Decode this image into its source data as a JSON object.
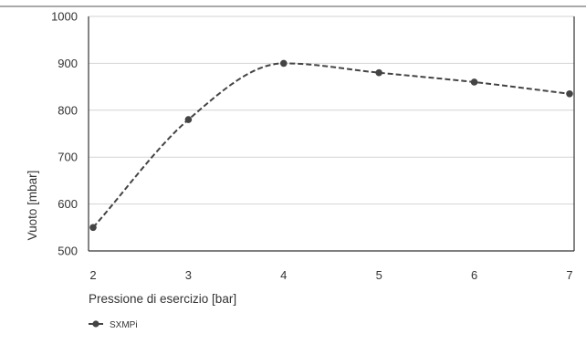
{
  "chart_data": {
    "type": "line",
    "x": [
      2,
      3,
      4,
      5,
      6,
      7
    ],
    "series": [
      {
        "name": "SXMPi",
        "values": [
          550,
          780,
          900,
          880,
          860,
          835
        ],
        "line_style": "dashed",
        "marker": "circle",
        "color": "#444444"
      }
    ],
    "xlabel": "Pressione di esercizio [bar]",
    "ylabel": "Vuoto [mbar]",
    "xlim": [
      2,
      7
    ],
    "ylim": [
      500,
      1000
    ],
    "x_ticks": [
      "2",
      "3",
      "4",
      "5",
      "6",
      "7"
    ],
    "y_ticks": [
      "500",
      "600",
      "700",
      "800",
      "900",
      "1000"
    ],
    "grid": "horizontal",
    "legend_position": "bottom-left"
  }
}
